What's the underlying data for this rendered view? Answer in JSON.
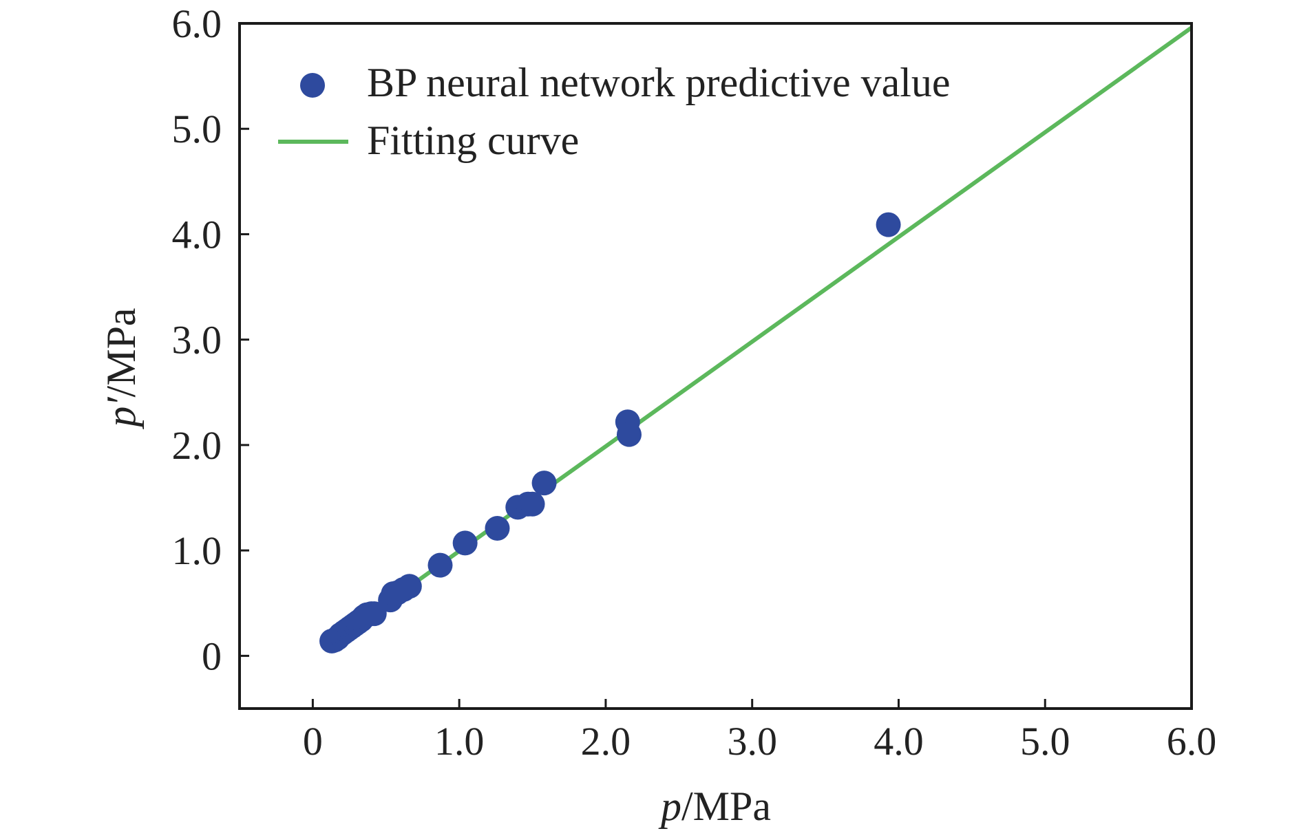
{
  "chart_data": {
    "type": "scatter",
    "xlabel": {
      "var": "p",
      "unit": "/MPa"
    },
    "ylabel": {
      "var": "p′",
      "unit": "/MPa"
    },
    "xlim": [
      -0.5,
      6.0
    ],
    "ylim": [
      -0.5,
      6.0
    ],
    "x_ticks": [
      0,
      1.0,
      2.0,
      3.0,
      4.0,
      5.0,
      6.0
    ],
    "x_tick_labels": [
      "0",
      "1.0",
      "2.0",
      "3.0",
      "4.0",
      "5.0",
      "6.0"
    ],
    "y_ticks": [
      0,
      1.0,
      2.0,
      3.0,
      4.0,
      5.0,
      6.0
    ],
    "y_tick_labels": [
      "0",
      "1.0",
      "2.0",
      "3.0",
      "4.0",
      "5.0",
      "6.0"
    ],
    "grid": false,
    "legend_position": "top-left",
    "series": [
      {
        "name": "BP neural network predictive value",
        "kind": "scatter",
        "color": "#2e4a9e",
        "points": [
          [
            0.13,
            0.14
          ],
          [
            0.15,
            0.15
          ],
          [
            0.17,
            0.17
          ],
          [
            0.19,
            0.2
          ],
          [
            0.21,
            0.22
          ],
          [
            0.23,
            0.24
          ],
          [
            0.25,
            0.26
          ],
          [
            0.27,
            0.28
          ],
          [
            0.29,
            0.3
          ],
          [
            0.31,
            0.32
          ],
          [
            0.33,
            0.34
          ],
          [
            0.35,
            0.37
          ],
          [
            0.37,
            0.39
          ],
          [
            0.4,
            0.4
          ],
          [
            0.42,
            0.4
          ],
          [
            0.53,
            0.53
          ],
          [
            0.55,
            0.59
          ],
          [
            0.58,
            0.6
          ],
          [
            0.62,
            0.63
          ],
          [
            0.66,
            0.66
          ],
          [
            0.87,
            0.86
          ],
          [
            1.04,
            1.07
          ],
          [
            1.26,
            1.21
          ],
          [
            1.4,
            1.41
          ],
          [
            1.47,
            1.44
          ],
          [
            1.5,
            1.44
          ],
          [
            1.58,
            1.64
          ],
          [
            2.15,
            2.22
          ],
          [
            2.16,
            2.1
          ],
          [
            3.93,
            4.09
          ]
        ]
      },
      {
        "name": "Fitting curve",
        "kind": "line",
        "color": "#5cb85c",
        "points": [
          [
            0.13,
            0.13
          ],
          [
            6.0,
            5.96
          ]
        ]
      }
    ]
  }
}
